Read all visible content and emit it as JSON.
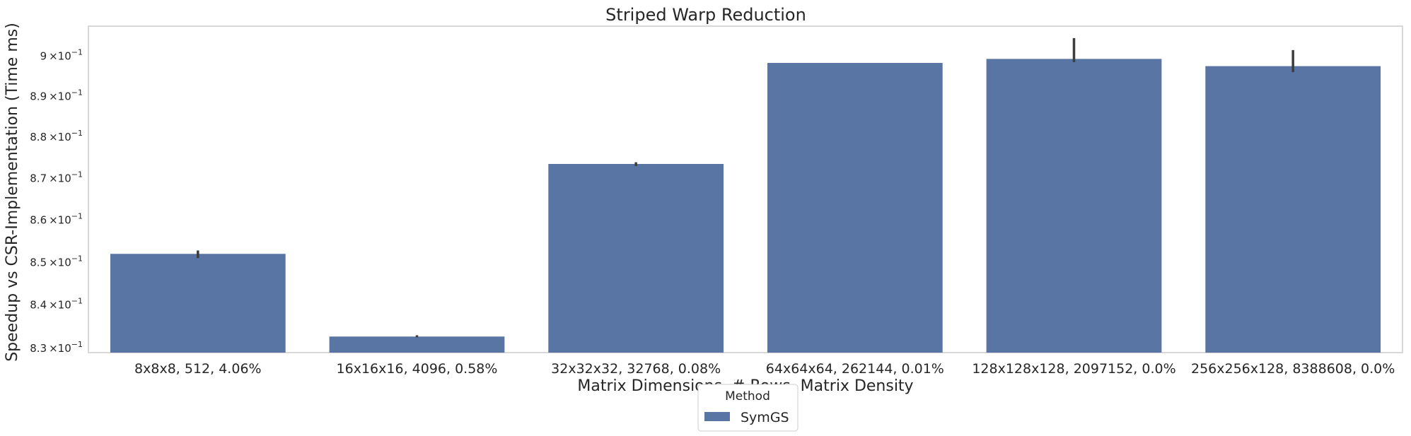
{
  "chart_data": {
    "type": "bar",
    "title": "Striped Warp Reduction",
    "xlabel": "Matrix Dimensions, # Rows, Matrix Density",
    "ylabel": "Speedup vs CSR-Implementation (Time ms)",
    "yscale": "log",
    "ylim": [
      0.829,
      0.9075
    ],
    "yticks": [
      0.83,
      0.84,
      0.85,
      0.86,
      0.87,
      0.88,
      0.89,
      0.9
    ],
    "ytick_labels": [
      {
        "mant": "8.3",
        "exp": "−1"
      },
      {
        "mant": "8.4",
        "exp": "−1"
      },
      {
        "mant": "8.5",
        "exp": "−1"
      },
      {
        "mant": "8.6",
        "exp": "−1"
      },
      {
        "mant": "8.7",
        "exp": "−1"
      },
      {
        "mant": "8.8",
        "exp": "−1"
      },
      {
        "mant": "8.9",
        "exp": "−1"
      },
      {
        "mant": "9",
        "exp": "−1"
      }
    ],
    "tick_times": "×10",
    "categories": [
      "8x8x8, 512, 4.06%",
      "16x16x16, 4096, 0.58%",
      "32x32x32, 32768, 0.08%",
      "64x64x64, 262144, 0.01%",
      "128x128x128, 2097152, 0.0%",
      "256x256x128, 8388608, 0.0%"
    ],
    "series": [
      {
        "name": "SymGS",
        "color": "#5975a4",
        "values": [
          0.852,
          0.8327,
          0.8735,
          0.8983,
          0.8993,
          0.8975
        ],
        "error_low": [
          0.851,
          0.8325,
          0.873,
          0.8983,
          0.8985,
          0.896
        ],
        "error_high": [
          0.8528,
          0.833,
          0.8739,
          0.8983,
          0.9045,
          0.9015
        ]
      }
    ],
    "grid": false,
    "legend": {
      "title": "Method",
      "placement": "bottom-center"
    }
  }
}
